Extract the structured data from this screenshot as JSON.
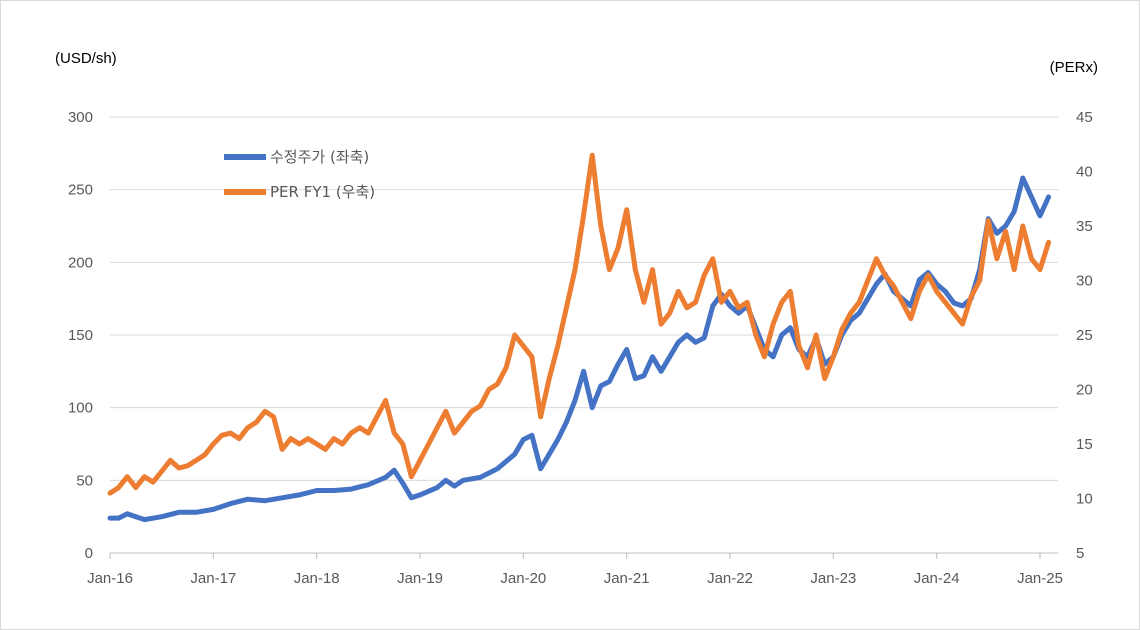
{
  "chart_data": {
    "type": "line",
    "left_unit": "(USD/sh)",
    "right_unit": "(PERx)",
    "x_ticks": [
      "Jan-16",
      "Jan-17",
      "Jan-18",
      "Jan-19",
      "Jan-20",
      "Jan-21",
      "Jan-22",
      "Jan-23",
      "Jan-24",
      "Jan-25"
    ],
    "y_left": {
      "min": 0,
      "max": 300,
      "ticks": [
        0,
        50,
        100,
        150,
        200,
        250,
        300
      ]
    },
    "y_right": {
      "min": 5,
      "max": 45,
      "ticks": [
        5,
        10,
        15,
        20,
        25,
        30,
        35,
        40,
        45
      ]
    },
    "grid": true,
    "legend_position": "upper-left",
    "series": [
      {
        "name": "수정주가 (좌축)",
        "axis": "left",
        "color": "#4472C4",
        "points": [
          [
            "2016-01",
            24
          ],
          [
            "2016-02",
            24
          ],
          [
            "2016-03",
            27
          ],
          [
            "2016-05",
            23
          ],
          [
            "2016-07",
            25
          ],
          [
            "2016-09",
            28
          ],
          [
            "2016-11",
            28
          ],
          [
            "2017-01",
            30
          ],
          [
            "2017-03",
            34
          ],
          [
            "2017-05",
            37
          ],
          [
            "2017-07",
            36
          ],
          [
            "2017-09",
            38
          ],
          [
            "2017-11",
            40
          ],
          [
            "2018-01",
            43
          ],
          [
            "2018-03",
            43
          ],
          [
            "2018-05",
            44
          ],
          [
            "2018-07",
            47
          ],
          [
            "2018-09",
            52
          ],
          [
            "2018-10",
            57
          ],
          [
            "2018-11",
            48
          ],
          [
            "2018-12",
            38
          ],
          [
            "2019-01",
            40
          ],
          [
            "2019-03",
            45
          ],
          [
            "2019-04",
            50
          ],
          [
            "2019-05",
            46
          ],
          [
            "2019-06",
            50
          ],
          [
            "2019-08",
            52
          ],
          [
            "2019-10",
            58
          ],
          [
            "2019-12",
            68
          ],
          [
            "2020-01",
            78
          ],
          [
            "2020-02",
            81
          ],
          [
            "2020-03",
            58
          ],
          [
            "2020-04",
            68
          ],
          [
            "2020-05",
            78
          ],
          [
            "2020-06",
            90
          ],
          [
            "2020-07",
            105
          ],
          [
            "2020-08",
            125
          ],
          [
            "2020-09",
            100
          ],
          [
            "2020-10",
            115
          ],
          [
            "2020-11",
            118
          ],
          [
            "2020-12",
            130
          ],
          [
            "2021-01",
            140
          ],
          [
            "2021-02",
            120
          ],
          [
            "2021-03",
            122
          ],
          [
            "2021-04",
            135
          ],
          [
            "2021-05",
            125
          ],
          [
            "2021-06",
            135
          ],
          [
            "2021-07",
            145
          ],
          [
            "2021-08",
            150
          ],
          [
            "2021-09",
            145
          ],
          [
            "2021-10",
            148
          ],
          [
            "2021-11",
            170
          ],
          [
            "2021-12",
            178
          ],
          [
            "2022-01",
            170
          ],
          [
            "2022-02",
            165
          ],
          [
            "2022-03",
            170
          ],
          [
            "2022-04",
            155
          ],
          [
            "2022-05",
            140
          ],
          [
            "2022-06",
            135
          ],
          [
            "2022-07",
            150
          ],
          [
            "2022-08",
            155
          ],
          [
            "2022-09",
            140
          ],
          [
            "2022-10",
            135
          ],
          [
            "2022-11",
            148
          ],
          [
            "2022-12",
            130
          ],
          [
            "2023-01",
            135
          ],
          [
            "2023-02",
            150
          ],
          [
            "2023-03",
            160
          ],
          [
            "2023-04",
            165
          ],
          [
            "2023-05",
            175
          ],
          [
            "2023-06",
            185
          ],
          [
            "2023-07",
            192
          ],
          [
            "2023-08",
            180
          ],
          [
            "2023-09",
            175
          ],
          [
            "2023-10",
            170
          ],
          [
            "2023-11",
            188
          ],
          [
            "2023-12",
            193
          ],
          [
            "2024-01",
            185
          ],
          [
            "2024-02",
            180
          ],
          [
            "2024-03",
            172
          ],
          [
            "2024-04",
            170
          ],
          [
            "2024-05",
            175
          ],
          [
            "2024-06",
            195
          ],
          [
            "2024-07",
            230
          ],
          [
            "2024-08",
            220
          ],
          [
            "2024-09",
            225
          ],
          [
            "2024-10",
            235
          ],
          [
            "2024-11",
            258
          ],
          [
            "2024-12",
            245
          ],
          [
            "2025-01",
            232
          ],
          [
            "2025-02",
            245
          ]
        ]
      },
      {
        "name": "PER FY1 (우축)",
        "axis": "right",
        "color": "#ED7D31",
        "points": [
          [
            "2016-01",
            10.5
          ],
          [
            "2016-02",
            11.0
          ],
          [
            "2016-03",
            12.0
          ],
          [
            "2016-04",
            11.0
          ],
          [
            "2016-05",
            12.0
          ],
          [
            "2016-06",
            11.5
          ],
          [
            "2016-07",
            12.5
          ],
          [
            "2016-08",
            13.5
          ],
          [
            "2016-09",
            12.8
          ],
          [
            "2016-10",
            13.0
          ],
          [
            "2016-11",
            13.5
          ],
          [
            "2016-12",
            14.0
          ],
          [
            "2017-01",
            15.0
          ],
          [
            "2017-02",
            15.8
          ],
          [
            "2017-03",
            16.0
          ],
          [
            "2017-04",
            15.5
          ],
          [
            "2017-05",
            16.5
          ],
          [
            "2017-06",
            17.0
          ],
          [
            "2017-07",
            18.0
          ],
          [
            "2017-08",
            17.5
          ],
          [
            "2017-09",
            14.5
          ],
          [
            "2017-10",
            15.5
          ],
          [
            "2017-11",
            15.0
          ],
          [
            "2017-12",
            15.5
          ],
          [
            "2018-01",
            15.0
          ],
          [
            "2018-02",
            14.5
          ],
          [
            "2018-03",
            15.5
          ],
          [
            "2018-04",
            15.0
          ],
          [
            "2018-05",
            16.0
          ],
          [
            "2018-06",
            16.5
          ],
          [
            "2018-07",
            16.0
          ],
          [
            "2018-08",
            17.5
          ],
          [
            "2018-09",
            19.0
          ],
          [
            "2018-10",
            16.0
          ],
          [
            "2018-11",
            15.0
          ],
          [
            "2018-12",
            12.0
          ],
          [
            "2019-01",
            13.5
          ],
          [
            "2019-02",
            15.0
          ],
          [
            "2019-03",
            16.5
          ],
          [
            "2019-04",
            18.0
          ],
          [
            "2019-05",
            16.0
          ],
          [
            "2019-06",
            17.0
          ],
          [
            "2019-07",
            18.0
          ],
          [
            "2019-08",
            18.5
          ],
          [
            "2019-09",
            20.0
          ],
          [
            "2019-10",
            20.5
          ],
          [
            "2019-11",
            22.0
          ],
          [
            "2019-12",
            25.0
          ],
          [
            "2020-01",
            24.0
          ],
          [
            "2020-02",
            23.0
          ],
          [
            "2020-03",
            17.5
          ],
          [
            "2020-04",
            21.0
          ],
          [
            "2020-05",
            24.0
          ],
          [
            "2020-06",
            27.5
          ],
          [
            "2020-07",
            31.0
          ],
          [
            "2020-08",
            36.0
          ],
          [
            "2020-09",
            41.5
          ],
          [
            "2020-10",
            35.0
          ],
          [
            "2020-11",
            31.0
          ],
          [
            "2020-12",
            33.0
          ],
          [
            "2021-01",
            36.5
          ],
          [
            "2021-02",
            31.0
          ],
          [
            "2021-03",
            28.0
          ],
          [
            "2021-04",
            31.0
          ],
          [
            "2021-05",
            26.0
          ],
          [
            "2021-06",
            27.0
          ],
          [
            "2021-07",
            29.0
          ],
          [
            "2021-08",
            27.5
          ],
          [
            "2021-09",
            28.0
          ],
          [
            "2021-10",
            30.5
          ],
          [
            "2021-11",
            32.0
          ],
          [
            "2021-12",
            28.0
          ],
          [
            "2022-01",
            29.0
          ],
          [
            "2022-02",
            27.5
          ],
          [
            "2022-03",
            28.0
          ],
          [
            "2022-04",
            25.0
          ],
          [
            "2022-05",
            23.0
          ],
          [
            "2022-06",
            26.0
          ],
          [
            "2022-07",
            28.0
          ],
          [
            "2022-08",
            29.0
          ],
          [
            "2022-09",
            24.0
          ],
          [
            "2022-10",
            22.0
          ],
          [
            "2022-11",
            25.0
          ],
          [
            "2022-12",
            21.0
          ],
          [
            "2023-01",
            23.0
          ],
          [
            "2023-02",
            25.5
          ],
          [
            "2023-03",
            27.0
          ],
          [
            "2023-04",
            28.0
          ],
          [
            "2023-05",
            30.0
          ],
          [
            "2023-06",
            32.0
          ],
          [
            "2023-07",
            30.5
          ],
          [
            "2023-08",
            29.5
          ],
          [
            "2023-09",
            28.0
          ],
          [
            "2023-10",
            26.5
          ],
          [
            "2023-11",
            29.0
          ],
          [
            "2023-12",
            30.5
          ],
          [
            "2024-01",
            29.0
          ],
          [
            "2024-02",
            28.0
          ],
          [
            "2024-03",
            27.0
          ],
          [
            "2024-04",
            26.0
          ],
          [
            "2024-05",
            28.5
          ],
          [
            "2024-06",
            30.0
          ],
          [
            "2024-07",
            35.5
          ],
          [
            "2024-08",
            32.0
          ],
          [
            "2024-09",
            34.5
          ],
          [
            "2024-10",
            31.0
          ],
          [
            "2024-11",
            35.0
          ],
          [
            "2024-12",
            32.0
          ],
          [
            "2025-01",
            31.0
          ],
          [
            "2025-02",
            33.5
          ]
        ]
      }
    ]
  }
}
